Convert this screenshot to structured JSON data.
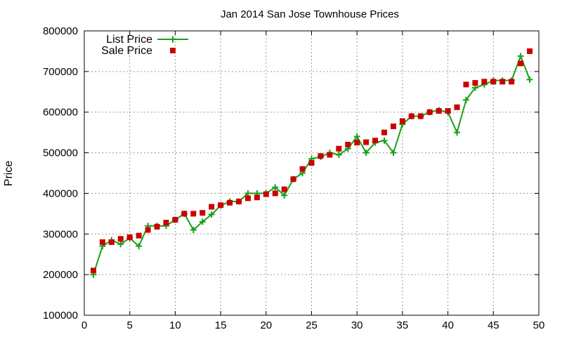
{
  "chart_data": {
    "type": "line",
    "title": "Jan 2014 San Jose Townhouse Prices",
    "xlabel": "",
    "ylabel": "Price",
    "xlim": [
      0,
      50
    ],
    "ylim": [
      100000,
      800000
    ],
    "xticks": [
      0,
      5,
      10,
      15,
      20,
      25,
      30,
      35,
      40,
      45,
      50
    ],
    "yticks": [
      100000,
      200000,
      300000,
      400000,
      500000,
      600000,
      700000,
      800000
    ],
    "grid": true,
    "legend_position": "top-left",
    "x": [
      1,
      2,
      3,
      4,
      5,
      6,
      7,
      8,
      9,
      10,
      11,
      12,
      13,
      14,
      15,
      16,
      17,
      18,
      19,
      20,
      21,
      22,
      23,
      24,
      25,
      26,
      27,
      28,
      29,
      30,
      31,
      32,
      33,
      34,
      35,
      36,
      37,
      38,
      39,
      40,
      41,
      42,
      43,
      44,
      45,
      46,
      47,
      48,
      49
    ],
    "series": [
      {
        "name": "List Price",
        "style": "line-plus",
        "color": "#1aa01a",
        "values": [
          200000,
          270000,
          285000,
          275000,
          290000,
          270000,
          320000,
          320000,
          320000,
          335000,
          350000,
          310000,
          330000,
          348000,
          370000,
          380000,
          380000,
          400000,
          400000,
          400000,
          415000,
          395000,
          435000,
          450000,
          485000,
          490000,
          500000,
          495000,
          510000,
          540000,
          500000,
          525000,
          530000,
          500000,
          570000,
          590000,
          590000,
          600000,
          605000,
          600000,
          550000,
          630000,
          660000,
          668000,
          678000,
          678000,
          678000,
          738000,
          680000
        ]
      },
      {
        "name": "Sale Price",
        "style": "square-markers",
        "color": "#cc0000",
        "values": [
          210000,
          280000,
          280000,
          288000,
          292000,
          296000,
          310000,
          318000,
          328000,
          335000,
          350000,
          350000,
          352000,
          367000,
          371000,
          377000,
          380000,
          388000,
          390000,
          398000,
          400000,
          410000,
          435000,
          460000,
          475000,
          492000,
          495000,
          510000,
          520000,
          525000,
          526000,
          530000,
          550000,
          565000,
          578000,
          590000,
          590000,
          600000,
          603000,
          603000,
          612000,
          668000,
          672000,
          675000,
          675000,
          675000,
          675000,
          720000,
          750000
        ]
      }
    ]
  }
}
